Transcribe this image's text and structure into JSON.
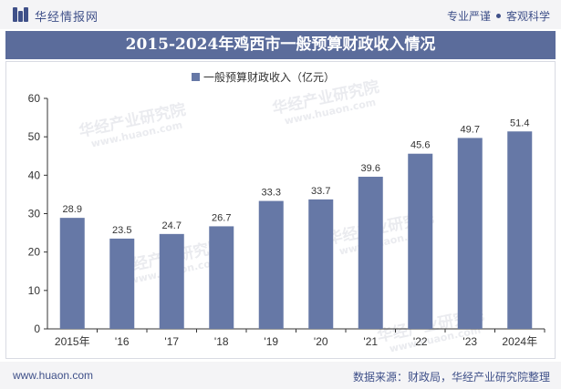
{
  "header": {
    "site_name": "华经情报网",
    "tagline_left": "专业严谨",
    "tagline_right": "客观科学"
  },
  "watermark": {
    "brand": "华经产业研究院",
    "url": "www.huaon.com"
  },
  "footer": {
    "url": "www.huaon.com",
    "source": "数据来源：财政局，华经产业研究院整理"
  },
  "colors": {
    "brand": "#3f5089",
    "title_band": "#5b6c9b",
    "bar": "#6678a6"
  },
  "chart_data": {
    "type": "bar",
    "title": "2015-2024年鸡西市一般预算财政收入情况",
    "categories": [
      "2015年",
      "'16",
      "'17",
      "'18",
      "'19",
      "'20",
      "'21",
      "'22",
      "'23",
      "2024年"
    ],
    "series": [
      {
        "name": "一般预算财政收入（亿元）",
        "values": [
          28.9,
          23.5,
          24.7,
          26.7,
          33.3,
          33.7,
          39.6,
          45.6,
          49.7,
          51.4
        ]
      }
    ],
    "ylim": [
      0,
      60
    ],
    "yticks": [
      0,
      10,
      20,
      30,
      40,
      50,
      60
    ],
    "grid": false,
    "legend": "top-center",
    "data_labels": true
  }
}
